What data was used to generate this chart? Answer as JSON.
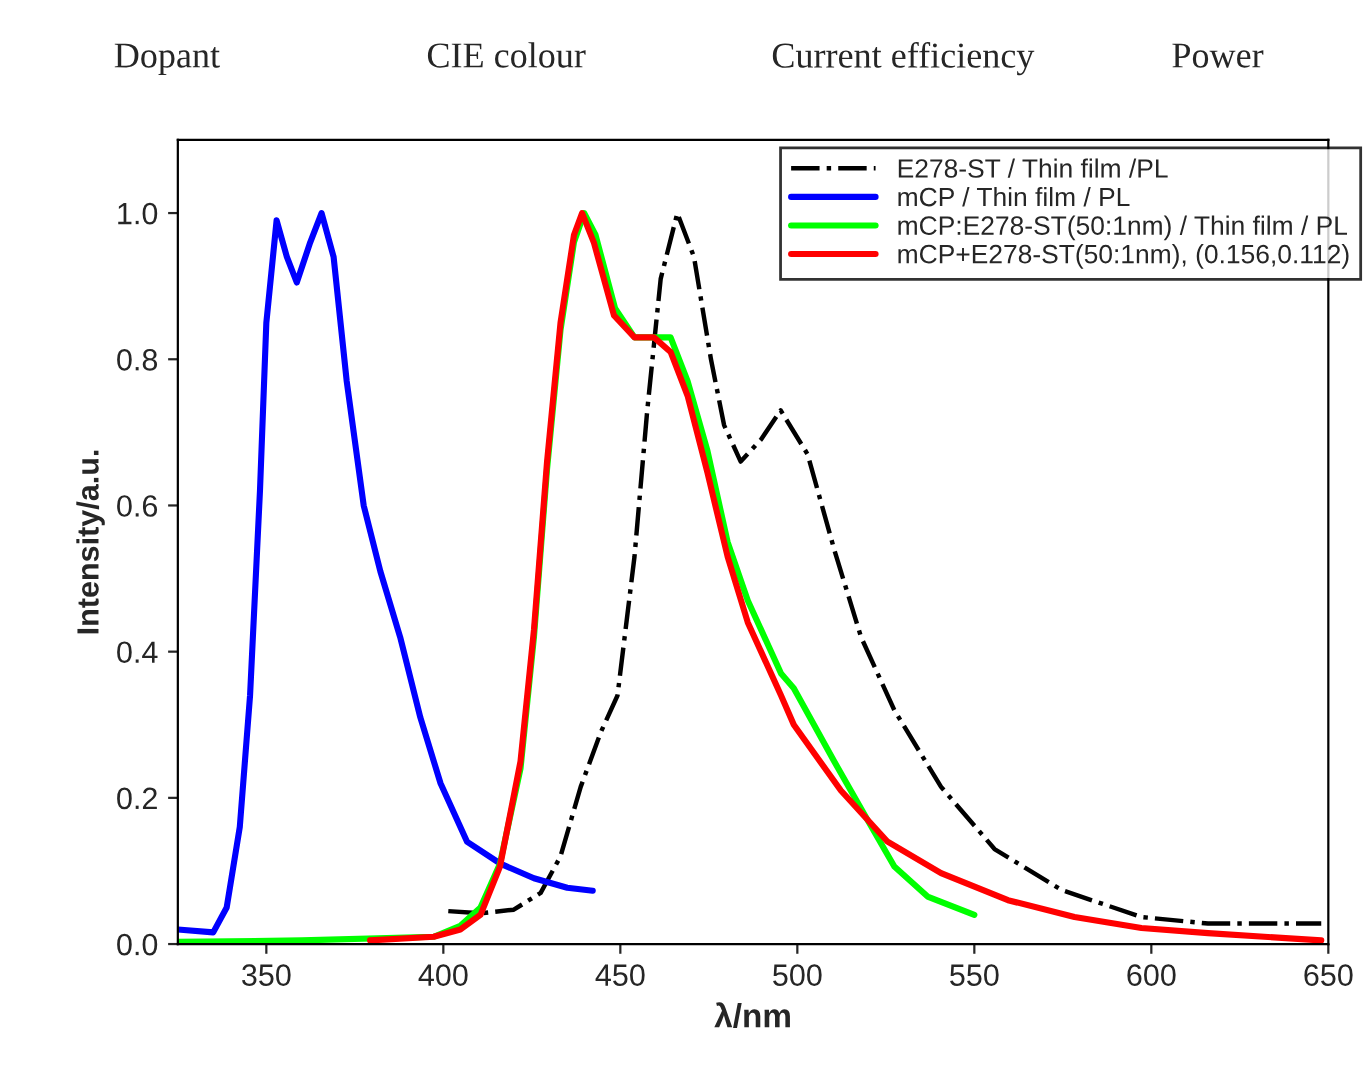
{
  "chart_data": {
    "type": "line",
    "xlabel": "λ/nm",
    "ylabel": "Intensity/a.u.",
    "annotations": [
      "Dopant",
      "CIE colour",
      "Current efficiency",
      "Power"
    ],
    "xlim": [
      325,
      650
    ],
    "xticks": [
      350,
      400,
      450,
      500,
      550,
      600,
      650
    ],
    "ylim": [
      0,
      1.1
    ],
    "yticks": [
      {
        "value": 0,
        "label": "0.0"
      },
      {
        "value": 0.2,
        "label": "0.2"
      },
      {
        "value": 0.4,
        "label": "0.4"
      },
      {
        "value": 0.6,
        "label": "0.6"
      },
      {
        "value": 0.8,
        "label": "0.8"
      },
      {
        "value": 1.0,
        "label": "1.0"
      }
    ],
    "grid": false,
    "legend": "top right",
    "marker": "none",
    "series": [
      {
        "name": "E278-ST / Thin film /PL",
        "color": "#000000",
        "line_style": "dashdot",
        "x": [
          401.4,
          410.5,
          419.9,
          427.5,
          433.1,
          438.8,
          444.5,
          449.2,
          454,
          457.6,
          461.4,
          466.1,
          470.8,
          475.6,
          479.3,
          484,
          489.7,
          495.3,
          502.9,
          510.4,
          518,
          527.4,
          540.6,
          555.7,
          574.6,
          597.2,
          616,
          648
        ],
        "values": [
          0.045,
          0.042,
          0.047,
          0.07,
          0.12,
          0.215,
          0.29,
          0.34,
          0.53,
          0.73,
          0.91,
          1.0,
          0.94,
          0.8,
          0.71,
          0.66,
          0.69,
          0.73,
          0.67,
          0.54,
          0.42,
          0.32,
          0.215,
          0.13,
          0.074,
          0.037,
          0.028,
          0.028
        ]
      },
      {
        "name": "mCP / Thin film / PL",
        "color": "#0000ff",
        "line_style": "solid",
        "x": [
          325,
          335,
          338.8,
          342.5,
          345.4,
          348.2,
          350,
          352.9,
          355.8,
          358.6,
          362.4,
          365.6,
          369,
          372.7,
          377.5,
          382.2,
          387.8,
          393.5,
          399.2,
          406.7,
          416.1,
          425.6,
          435,
          442.2
        ],
        "values": [
          0.02,
          0.016,
          0.05,
          0.16,
          0.34,
          0.62,
          0.85,
          0.99,
          0.94,
          0.905,
          0.96,
          1.0,
          0.94,
          0.77,
          0.6,
          0.51,
          0.42,
          0.31,
          0.22,
          0.14,
          0.11,
          0.09,
          0.077,
          0.073
        ]
      },
      {
        "name": "mCP:E278-ST(50:1nm) / Thin film / PL",
        "color": "#00ff00",
        "line_style": "solid",
        "x": [
          325,
          360,
          397.3,
          404.8,
          410.5,
          416,
          421.8,
          425.6,
          429.3,
          433.1,
          436.9,
          439.8,
          443,
          448.5,
          454,
          459.5,
          464.2,
          469,
          474.6,
          480.3,
          486,
          495.4,
          499,
          510.4,
          519.8,
          527.4,
          536.8,
          550
        ],
        "values": [
          0.003,
          0.005,
          0.01,
          0.025,
          0.05,
          0.11,
          0.24,
          0.42,
          0.65,
          0.84,
          0.96,
          1.0,
          0.97,
          0.87,
          0.83,
          0.83,
          0.83,
          0.77,
          0.675,
          0.55,
          0.47,
          0.37,
          0.35,
          0.25,
          0.17,
          0.106,
          0.065,
          0.04
        ]
      },
      {
        "name": "mCP+E278-ST(50:1nm), (0.156,0.112)",
        "color": "#ff0000",
        "line_style": "solid",
        "x": [
          379.3,
          397.3,
          404.8,
          410.5,
          416,
          421.8,
          425.6,
          429.3,
          433.1,
          436.9,
          439.2,
          442.5,
          448.2,
          454,
          459.5,
          464.2,
          469,
          474.6,
          480.3,
          486,
          495.4,
          499,
          512.3,
          525.5,
          540.6,
          559.5,
          578.3,
          597.2,
          616,
          648
        ],
        "values": [
          0.005,
          0.01,
          0.02,
          0.04,
          0.106,
          0.25,
          0.43,
          0.66,
          0.85,
          0.97,
          1.0,
          0.96,
          0.86,
          0.83,
          0.83,
          0.81,
          0.75,
          0.645,
          0.53,
          0.44,
          0.34,
          0.3,
          0.21,
          0.14,
          0.097,
          0.06,
          0.037,
          0.022,
          0.015,
          0.005
        ]
      }
    ]
  }
}
